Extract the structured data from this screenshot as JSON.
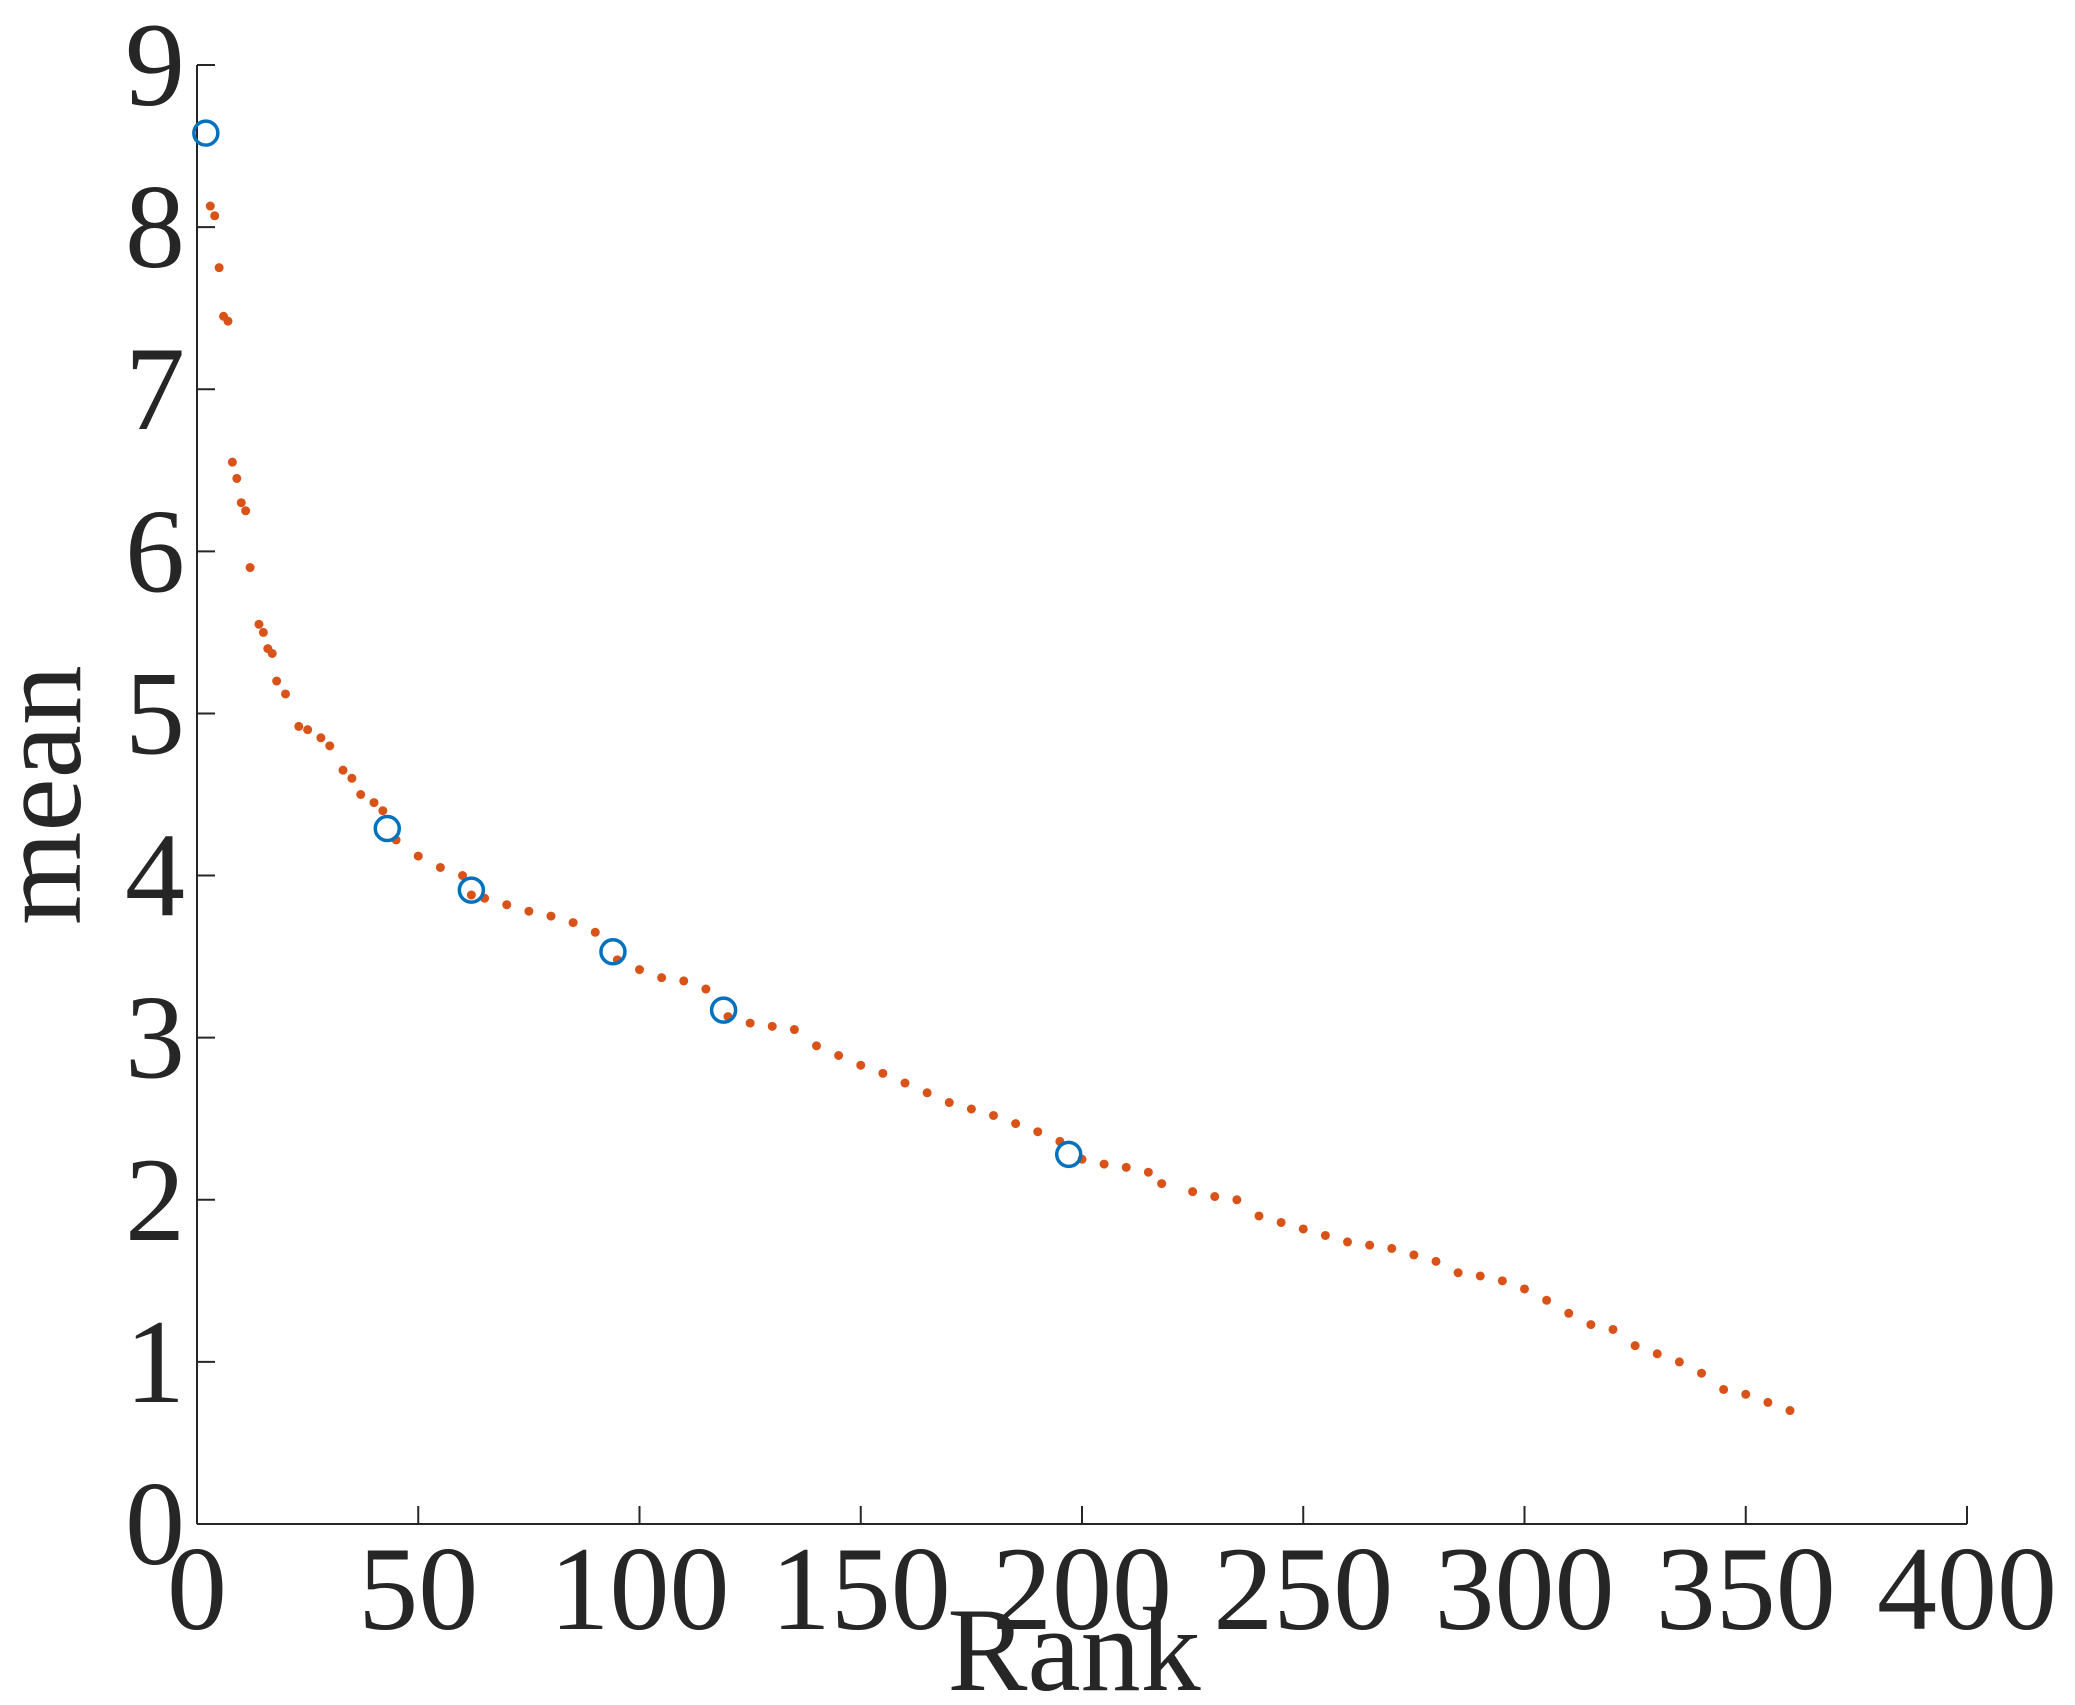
{
  "chart_data": {
    "type": "scatter",
    "xlabel": "Rank",
    "ylabel": "mean",
    "xlim": [
      0,
      400
    ],
    "xticks": [
      0,
      50,
      100,
      150,
      200,
      250,
      300,
      350,
      400
    ],
    "ylim": [
      0,
      9
    ],
    "yticks": [
      0,
      1,
      2,
      3,
      4,
      5,
      6,
      7,
      8,
      9
    ],
    "series": [
      {
        "color": "#d95319",
        "marker": "dot",
        "x": [
          3,
          4,
          5,
          6,
          7,
          8,
          9,
          10,
          11,
          12,
          14,
          15,
          16,
          17,
          18,
          20,
          23,
          25,
          28,
          30,
          33,
          35,
          37,
          40,
          42,
          45,
          50,
          55,
          60,
          62,
          65,
          70,
          75,
          80,
          85,
          90,
          95,
          100,
          105,
          110,
          115,
          120,
          125,
          130,
          135,
          140,
          145,
          150,
          155,
          160,
          165,
          170,
          175,
          180,
          185,
          190,
          195,
          200,
          205,
          210,
          215,
          218,
          225,
          230,
          235,
          240,
          245,
          250,
          255,
          260,
          265,
          270,
          275,
          280,
          285,
          290,
          295,
          300,
          305,
          310,
          315,
          320,
          325,
          330,
          335,
          340,
          345,
          350,
          355,
          360
        ],
        "values": [
          8.13,
          8.07,
          7.75,
          7.45,
          7.42,
          6.55,
          6.45,
          6.3,
          6.25,
          5.9,
          5.55,
          5.5,
          5.4,
          5.37,
          5.2,
          5.12,
          4.92,
          4.9,
          4.85,
          4.8,
          4.65,
          4.6,
          4.5,
          4.45,
          4.4,
          4.22,
          4.12,
          4.05,
          4.0,
          3.88,
          3.86,
          3.82,
          3.78,
          3.75,
          3.71,
          3.65,
          3.48,
          3.42,
          3.37,
          3.35,
          3.3,
          3.13,
          3.09,
          3.07,
          3.05,
          2.95,
          2.89,
          2.83,
          2.78,
          2.72,
          2.66,
          2.6,
          2.56,
          2.52,
          2.47,
          2.42,
          2.36,
          2.25,
          2.22,
          2.2,
          2.17,
          2.1,
          2.05,
          2.02,
          2.0,
          1.9,
          1.86,
          1.82,
          1.78,
          1.74,
          1.72,
          1.7,
          1.66,
          1.62,
          1.55,
          1.53,
          1.5,
          1.45,
          1.38,
          1.3,
          1.23,
          1.2,
          1.1,
          1.05,
          1.0,
          0.93,
          0.83,
          0.8,
          0.75,
          0.7
        ]
      },
      {
        "color": "#0072bd",
        "marker": "circle",
        "x": [
          2,
          43,
          62,
          94,
          119,
          197
        ],
        "values": [
          8.58,
          4.29,
          3.91,
          3.53,
          3.17,
          2.28
        ]
      }
    ]
  }
}
